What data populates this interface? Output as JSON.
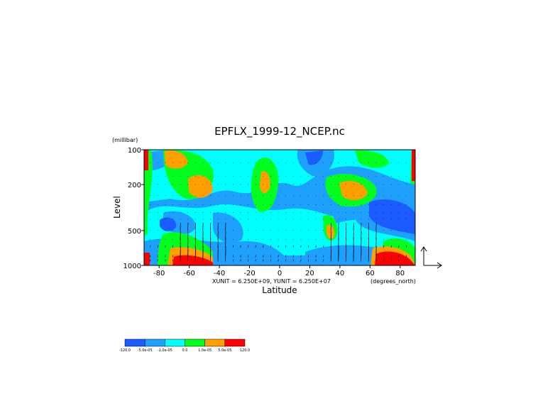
{
  "chart_data": {
    "type": "heatmap",
    "title": "EPFLX_1999-12_NCEP.nc",
    "ylabel": "Level",
    "yunit": "(millibar)",
    "xlabel": "Latitude",
    "xunit": "(degrees_north)",
    "unit_note": "XUNIT = 6.250E+09, YUNIT = 6.250E+07",
    "x_ticks": [
      -80,
      -60,
      -40,
      -20,
      0,
      20,
      40,
      60,
      80
    ],
    "y_ticks": [
      100,
      200,
      500,
      1000
    ],
    "xlim": [
      -90,
      90
    ],
    "ylim": [
      1000,
      100
    ],
    "y_scale": "log",
    "grid": false,
    "colorbar": {
      "labels": [
        "-120.0",
        "-5.0e-05",
        "-1.0e-05",
        "0.0",
        "1.0e-05",
        "5.0e-05",
        "120.0"
      ],
      "colors": [
        "#1a5cff",
        "#1ea0ff",
        "#00ffff",
        "#00ff1e",
        "#ffa000",
        "#ff0000"
      ]
    },
    "field_levels": [
      {
        "color": "#1a5cff",
        "label": "< -5.0e-05"
      },
      {
        "color": "#1ea0ff",
        "label": "-5.0e-05 to -1.0e-05"
      },
      {
        "color": "#00ffff",
        "label": "-1.0e-05 to 0.0"
      },
      {
        "color": "#00ff1e",
        "label": "0.0 to 1.0e-05"
      },
      {
        "color": "#ffa000",
        "label": "1.0e-05 to 5.0e-05"
      },
      {
        "color": "#ff0000",
        "label": "> 5.0e-05"
      }
    ]
  }
}
